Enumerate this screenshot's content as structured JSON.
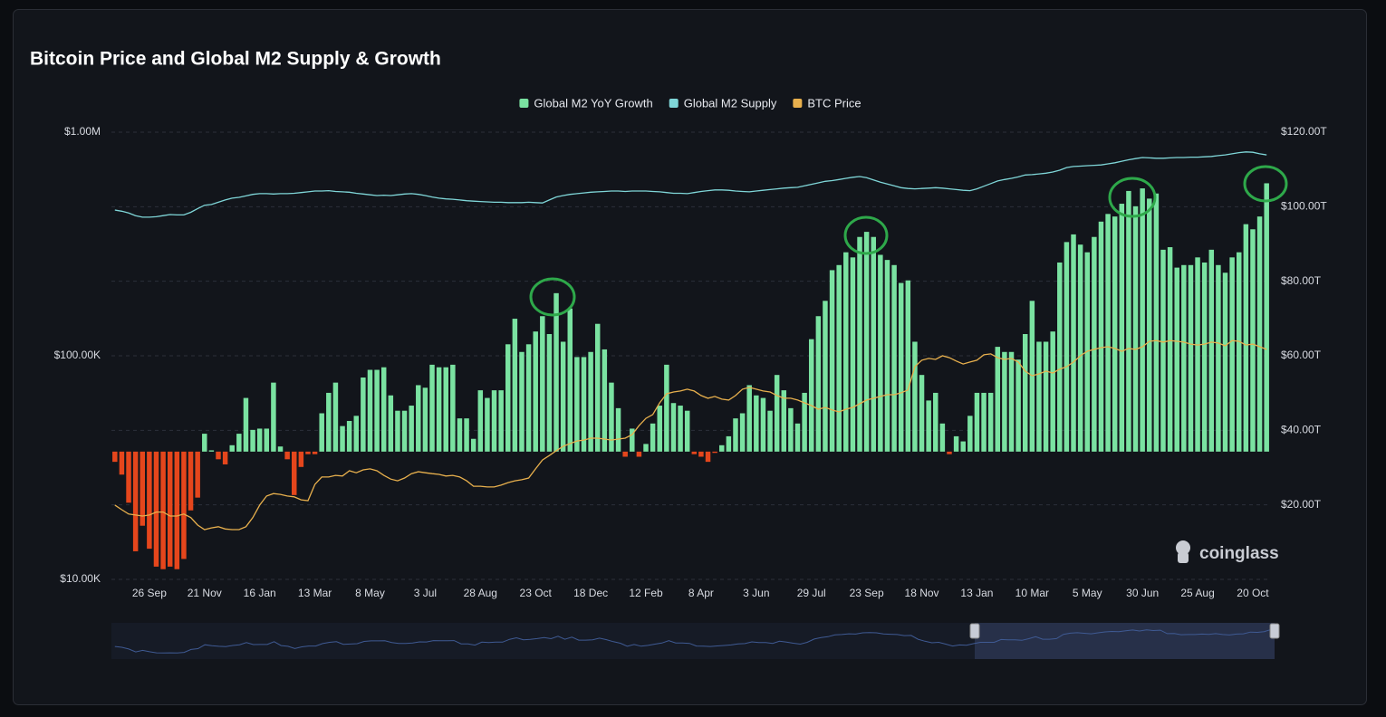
{
  "chart_data": {
    "type": "combo",
    "title": "Bitcoin Price and Global M2 Supply & Growth",
    "watermark": "coinglass",
    "categories": [
      null,
      null,
      null,
      null,
      null,
      "26 Sep",
      null,
      null,
      null,
      null,
      null,
      null,
      null,
      "21 Nov",
      null,
      null,
      null,
      null,
      null,
      null,
      null,
      "16 Jan",
      null,
      null,
      null,
      null,
      null,
      null,
      null,
      "13 Mar",
      null,
      null,
      null,
      null,
      null,
      null,
      null,
      "8 May",
      null,
      null,
      null,
      null,
      null,
      null,
      null,
      "3 Jul",
      null,
      null,
      null,
      null,
      null,
      null,
      null,
      "28 Aug",
      null,
      null,
      null,
      null,
      null,
      null,
      null,
      "23 Oct",
      null,
      null,
      null,
      null,
      null,
      null,
      null,
      "18 Dec",
      null,
      null,
      null,
      null,
      null,
      null,
      null,
      "12 Feb",
      null,
      null,
      null,
      null,
      null,
      null,
      null,
      "8 Apr",
      null,
      null,
      null,
      null,
      null,
      null,
      null,
      "3 Jun",
      null,
      null,
      null,
      null,
      null,
      null,
      null,
      "29 Jul",
      null,
      null,
      null,
      null,
      null,
      null,
      null,
      "23 Sep",
      null,
      null,
      null,
      null,
      null,
      null,
      null,
      "18 Nov",
      null,
      null,
      null,
      null,
      null,
      null,
      null,
      "13 Jan",
      null,
      null,
      null,
      null,
      null,
      null,
      null,
      "10 Mar",
      null,
      null,
      null,
      null,
      null,
      null,
      null,
      "5 May",
      null,
      null,
      null,
      null,
      null,
      null,
      null,
      "30 Jun",
      null,
      null,
      null,
      null,
      null,
      null,
      null,
      "25 Aug",
      null,
      null,
      null,
      null,
      null,
      null,
      null,
      "20 Oct",
      null,
      null
    ],
    "ylog": true,
    "ylim": [
      10000,
      1000000
    ],
    "yticks": [
      {
        "value": 10000,
        "label": "$10.00K"
      },
      {
        "value": 100000,
        "label": "$100.00K"
      },
      {
        "value": 1000000,
        "label": "$1.00M"
      }
    ],
    "y2lim": [
      0,
      120
    ],
    "y2ticks": [
      {
        "value": 20,
        "label": "$20.00T"
      },
      {
        "value": 40,
        "label": "$40.00T"
      },
      {
        "value": 60,
        "label": "$60.00T"
      },
      {
        "value": 80,
        "label": "$80.00T"
      },
      {
        "value": 100,
        "label": "$100.00T"
      },
      {
        "value": 120,
        "label": "$120.00T"
      }
    ],
    "y3lim": [
      -5,
      12.5
    ],
    "grid": true,
    "legend": "top",
    "series": [
      {
        "name": "Global M2 YoY Growth",
        "type": "bar",
        "axis": "y3",
        "color": "#7ae2a1",
        "negative_color": "#e5461c",
        "values": [
          -0.4,
          -0.9,
          -2.0,
          -3.9,
          -2.9,
          -3.8,
          -4.5,
          -4.6,
          -4.5,
          -4.6,
          -4.2,
          -2.3,
          -1.8,
          0.7,
          0.05,
          -0.3,
          -0.5,
          0.25,
          0.7,
          2.1,
          0.85,
          0.9,
          0.9,
          2.7,
          0.2,
          -0.3,
          -1.7,
          -0.6,
          -0.1,
          -0.1,
          1.5,
          2.3,
          2.7,
          1.0,
          1.2,
          1.4,
          2.9,
          3.2,
          3.2,
          3.3,
          2.2,
          1.6,
          1.6,
          1.8,
          2.6,
          2.5,
          3.4,
          3.3,
          3.3,
          3.4,
          1.3,
          1.3,
          0.5,
          2.4,
          2.1,
          2.4,
          2.4,
          4.2,
          5.2,
          3.9,
          4.2,
          4.7,
          5.3,
          4.6,
          6.2,
          4.3,
          5.6,
          3.7,
          3.7,
          3.9,
          5.0,
          4.0,
          2.7,
          1.7,
          -0.2,
          0.9,
          -0.2,
          0.3,
          1.1,
          1.8,
          3.4,
          1.9,
          1.8,
          1.6,
          -0.1,
          -0.2,
          -0.4,
          -0.05,
          0.25,
          0.6,
          1.3,
          1.5,
          2.6,
          2.2,
          2.1,
          1.6,
          3.0,
          2.4,
          1.7,
          1.1,
          2.3,
          4.4,
          5.3,
          5.9,
          7.1,
          7.3,
          7.8,
          7.6,
          8.4,
          8.6,
          8.4,
          7.7,
          7.5,
          7.3,
          6.6,
          6.7,
          4.3,
          3.0,
          2.0,
          2.3,
          1.1,
          -0.1,
          0.6,
          0.4,
          1.4,
          2.3,
          2.3,
          2.3,
          4.1,
          3.9,
          3.9,
          3.6,
          4.6,
          5.9,
          4.3,
          4.3,
          4.7,
          7.4,
          8.2,
          8.5,
          8.1,
          7.8,
          8.4,
          9.0,
          9.3,
          9.2,
          9.7,
          10.2,
          9.6,
          10.3,
          9.9,
          10.1,
          7.9,
          8.0,
          7.2,
          7.3,
          7.3,
          7.6,
          7.4,
          7.9,
          7.3,
          7.0,
          7.6,
          7.8,
          8.9,
          8.7,
          9.2,
          10.5
        ]
      },
      {
        "name": "Global M2 Supply",
        "type": "line",
        "axis": "y2",
        "color": "#7fd6d8",
        "values": [
          99.1,
          98.8,
          98.3,
          97.6,
          97.2,
          97.2,
          97.3,
          97.6,
          97.9,
          97.8,
          97.8,
          98.5,
          99.5,
          100.4,
          100.6,
          101.2,
          101.8,
          102.3,
          102.5,
          102.9,
          103.3,
          103.5,
          103.5,
          103.4,
          103.5,
          103.5,
          103.6,
          103.8,
          104.0,
          104.2,
          104.2,
          104.3,
          104.1,
          104.0,
          103.9,
          103.6,
          103.4,
          103.2,
          103.0,
          103.1,
          103.0,
          103.2,
          103.4,
          103.5,
          103.3,
          103.0,
          102.6,
          102.3,
          102.1,
          102.0,
          101.8,
          101.6,
          101.5,
          101.4,
          101.3,
          101.2,
          101.2,
          101.1,
          101.1,
          101.1,
          101.2,
          101.1,
          101.0,
          101.8,
          102.6,
          103.0,
          103.3,
          103.5,
          103.7,
          103.9,
          104.0,
          104.1,
          104.2,
          104.2,
          104.1,
          104.2,
          104.2,
          104.2,
          104.1,
          104.0,
          103.8,
          103.6,
          103.6,
          103.5,
          103.8,
          104.1,
          104.3,
          104.5,
          104.5,
          104.4,
          104.2,
          104.1,
          104.0,
          104.2,
          104.4,
          104.6,
          104.8,
          105.0,
          105.1,
          105.2,
          105.6,
          106.0,
          106.4,
          106.8,
          107.0,
          107.3,
          107.6,
          107.9,
          108.1,
          107.8,
          107.2,
          106.6,
          106.1,
          105.6,
          105.1,
          104.9,
          104.8,
          104.9,
          105.0,
          105.1,
          105.0,
          104.8,
          104.6,
          104.4,
          104.3,
          104.8,
          105.5,
          106.2,
          106.9,
          107.3,
          107.6,
          108.0,
          108.5,
          108.6,
          108.8,
          109.0,
          109.3,
          109.8,
          110.5,
          110.8,
          110.9,
          111.0,
          111.1,
          111.2,
          111.5,
          111.8,
          112.2,
          112.6,
          112.9,
          113.2,
          113.1,
          113.0,
          113.0,
          113.1,
          113.2,
          113.2,
          113.3,
          113.3,
          113.4,
          113.5,
          113.7,
          113.9,
          114.2,
          114.5,
          114.7,
          114.6,
          114.2,
          113.9
        ]
      },
      {
        "name": "BTC Price",
        "type": "line",
        "axis": "y",
        "color": "#e8b04d",
        "values": [
          21500,
          20500,
          19600,
          19400,
          19200,
          19400,
          20000,
          20000,
          19200,
          19200,
          19600,
          18900,
          17500,
          16700,
          17000,
          17200,
          16800,
          16700,
          16700,
          17200,
          18900,
          21500,
          23600,
          24200,
          24000,
          23600,
          23400,
          22700,
          22500,
          26600,
          28700,
          28700,
          29200,
          29000,
          30600,
          30000,
          30900,
          31200,
          30600,
          29200,
          28100,
          27600,
          28400,
          29700,
          30300,
          30000,
          29700,
          29500,
          29000,
          29200,
          28700,
          27600,
          26100,
          26100,
          25900,
          25900,
          26400,
          27100,
          27600,
          27900,
          28400,
          31200,
          34200,
          35800,
          37600,
          39400,
          40500,
          41600,
          42000,
          42800,
          42800,
          42400,
          42000,
          42400,
          42800,
          44400,
          48700,
          52500,
          54600,
          61600,
          67600,
          68900,
          69600,
          70900,
          69600,
          66400,
          64600,
          65800,
          64000,
          63400,
          66400,
          70900,
          72200,
          70900,
          69600,
          68900,
          66400,
          64600,
          64600,
          63400,
          61600,
          59900,
          57700,
          58800,
          57200,
          56100,
          57700,
          58800,
          61000,
          63400,
          64600,
          65800,
          67000,
          67000,
          68300,
          70300,
          89300,
          95500,
          97300,
          96300,
          100000,
          98100,
          94700,
          91900,
          93800,
          95500,
          101000,
          102000,
          98100,
          96300,
          97300,
          93800,
          85400,
          81400,
          83000,
          85400,
          83800,
          87200,
          89300,
          93800,
          100000,
          104800,
          106800,
          108800,
          109800,
          107800,
          104800,
          107800,
          106800,
          109800,
          116100,
          117000,
          115100,
          117000,
          116100,
          115100,
          112800,
          111700,
          112800,
          115100,
          114000,
          110800,
          117000,
          116100,
          111700,
          112800,
          109800,
          106800
        ]
      }
    ]
  }
}
